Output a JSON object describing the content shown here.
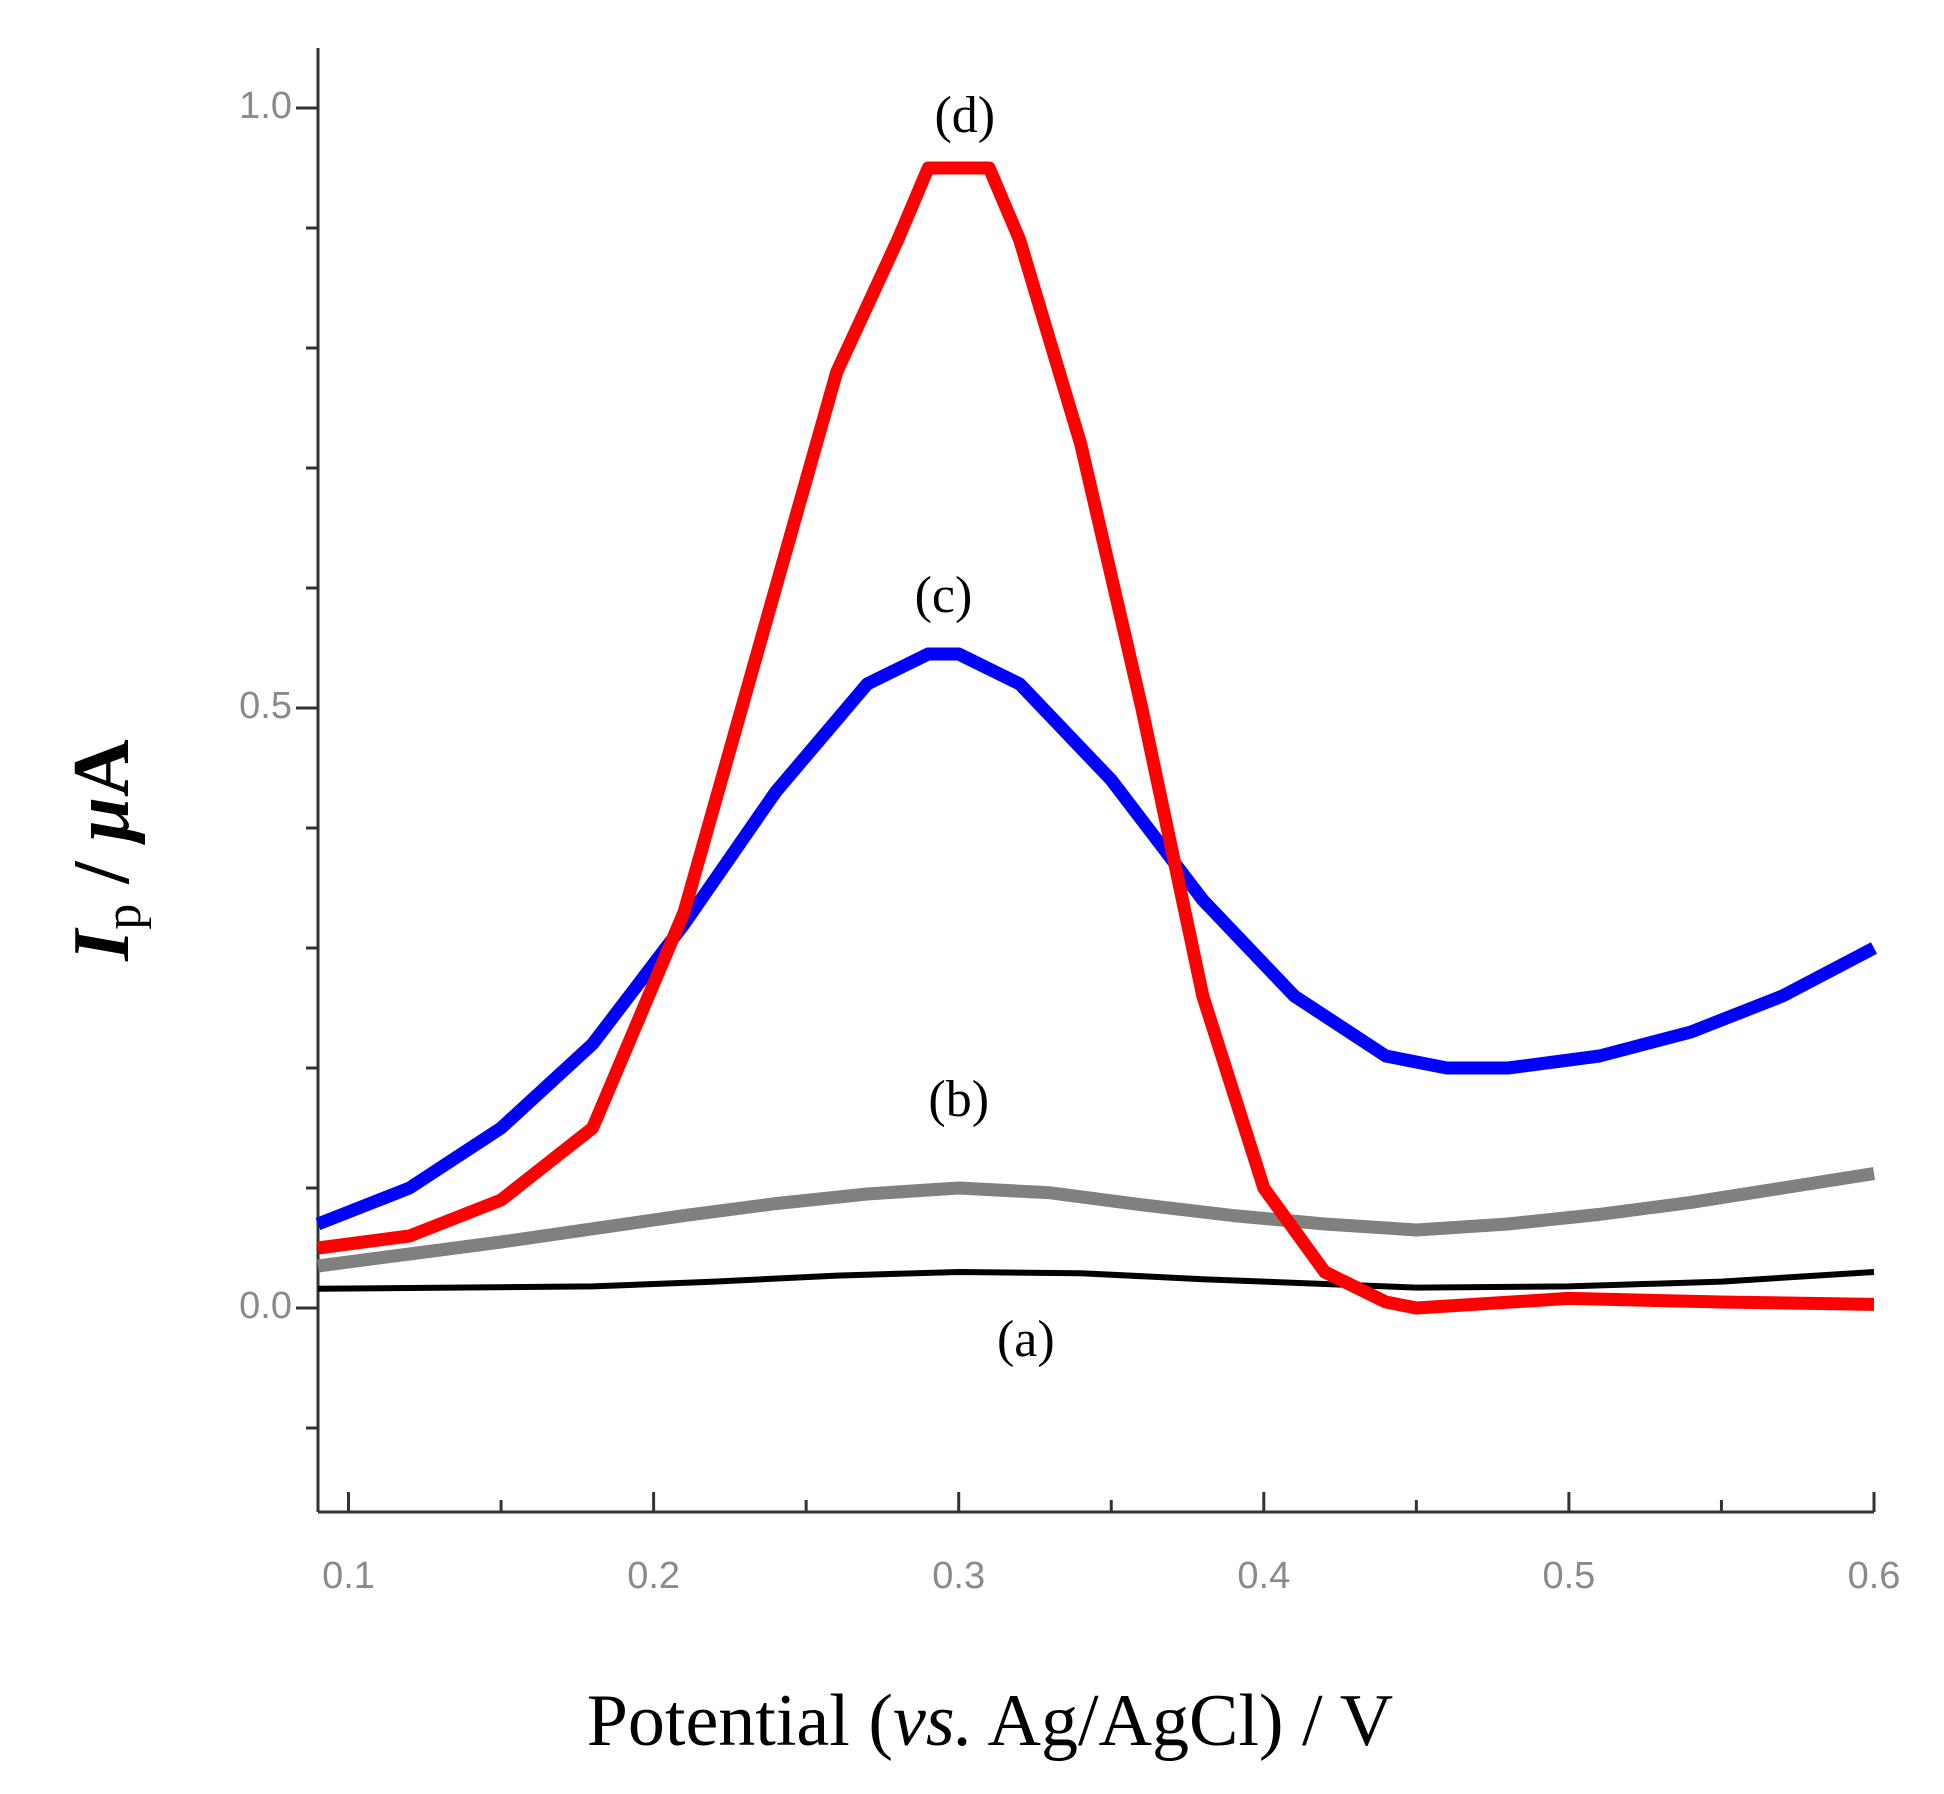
{
  "chart_data": {
    "type": "line",
    "title": "",
    "xlabel": "Potential (vs. Ag/AgCl) / V",
    "xlabel_parts": {
      "prefix": "Potential (",
      "italic": "vs.",
      "suffix": " Ag/AgCl) / V"
    },
    "ylabel": "Ip / μA",
    "ylabel_parts": {
      "main": "I",
      "sub": "p",
      "rest": " / ",
      "mu": "μ",
      "unit": "A"
    },
    "xlim": [
      0.09,
      0.6
    ],
    "ylim": [
      -0.17,
      1.05
    ],
    "x_ticks": [
      0.1,
      0.2,
      0.3,
      0.4,
      0.5,
      0.6
    ],
    "x_tick_labels": [
      "0.1",
      "0.2",
      "0.3",
      "0.4",
      "0.5",
      "0.6"
    ],
    "y_ticks": [
      0.0,
      0.5,
      1.0
    ],
    "y_tick_labels": [
      "0.0",
      "0.5",
      "1.0"
    ],
    "series": [
      {
        "name": "(a)",
        "color": "#000000",
        "x": [
          0.09,
          0.18,
          0.22,
          0.26,
          0.3,
          0.34,
          0.38,
          0.42,
          0.45,
          0.5,
          0.55,
          0.6
        ],
        "y": [
          0.016,
          0.018,
          0.022,
          0.027,
          0.03,
          0.029,
          0.024,
          0.02,
          0.017,
          0.018,
          0.022,
          0.03
        ]
      },
      {
        "name": "(b)",
        "color": "#808080",
        "x": [
          0.09,
          0.12,
          0.15,
          0.18,
          0.21,
          0.24,
          0.27,
          0.3,
          0.33,
          0.36,
          0.39,
          0.42,
          0.45,
          0.48,
          0.51,
          0.54,
          0.57,
          0.6
        ],
        "y": [
          0.035,
          0.045,
          0.055,
          0.066,
          0.077,
          0.087,
          0.095,
          0.1,
          0.096,
          0.086,
          0.077,
          0.07,
          0.065,
          0.07,
          0.078,
          0.088,
          0.1,
          0.112
        ]
      },
      {
        "name": "(c)",
        "color": "#0000ff",
        "x": [
          0.09,
          0.12,
          0.15,
          0.18,
          0.21,
          0.24,
          0.27,
          0.29,
          0.3,
          0.32,
          0.35,
          0.38,
          0.41,
          0.44,
          0.46,
          0.48,
          0.51,
          0.54,
          0.57,
          0.6
        ],
        "y": [
          0.07,
          0.1,
          0.15,
          0.22,
          0.32,
          0.43,
          0.52,
          0.545,
          0.545,
          0.52,
          0.44,
          0.34,
          0.26,
          0.21,
          0.2,
          0.2,
          0.21,
          0.23,
          0.26,
          0.3
        ]
      },
      {
        "name": "(d)",
        "color": "#ff0000",
        "x": [
          0.09,
          0.12,
          0.15,
          0.18,
          0.21,
          0.24,
          0.26,
          0.28,
          0.29,
          0.31,
          0.32,
          0.34,
          0.36,
          0.38,
          0.4,
          0.42,
          0.44,
          0.45,
          0.5,
          0.55,
          0.6
        ],
        "y": [
          0.05,
          0.06,
          0.09,
          0.15,
          0.33,
          0.6,
          0.78,
          0.89,
          0.95,
          0.95,
          0.89,
          0.72,
          0.5,
          0.26,
          0.1,
          0.03,
          0.005,
          0.0,
          0.008,
          0.005,
          0.003
        ]
      }
    ],
    "annotations": [
      {
        "text": "(a)",
        "x": 0.322,
        "y": -0.04
      },
      {
        "text": "(b)",
        "x": 0.3,
        "y": 0.16
      },
      {
        "text": "(c)",
        "x": 0.295,
        "y": 0.58
      },
      {
        "text": "(d)",
        "x": 0.302,
        "y": 0.98
      }
    ]
  }
}
